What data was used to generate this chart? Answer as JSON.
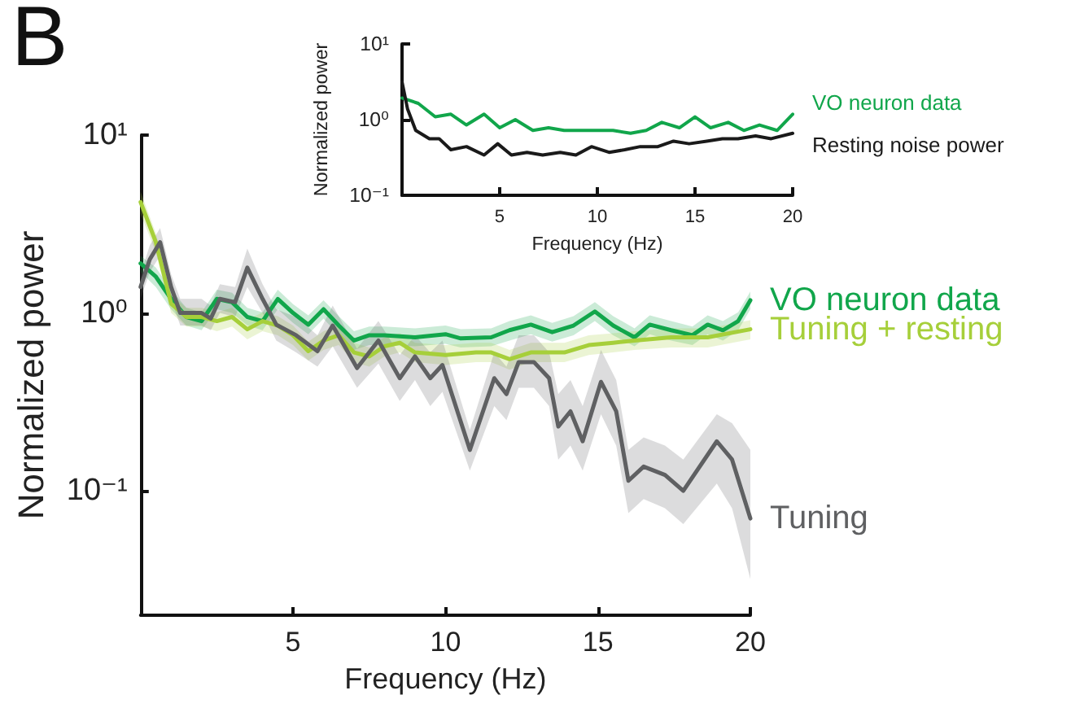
{
  "chart_data": [
    {
      "type": "line",
      "title": "B",
      "xlabel": "Frequency (Hz)",
      "ylabel": "Normalized power",
      "log": "y",
      "grid": false,
      "legend": false,
      "marker": "none",
      "line_style": "solid",
      "xlim": [
        0,
        20
      ],
      "xticks": [
        5,
        10,
        15,
        20
      ],
      "ylim": [
        0.02,
        10
      ],
      "yticks": [
        {
          "value": 0.1,
          "label": "10⁻¹"
        },
        {
          "value": 1,
          "label": "10⁰"
        },
        {
          "value": 10,
          "label": "10¹"
        }
      ],
      "series": [
        {
          "name": "VO neuron data",
          "color": "#11a64b",
          "x": [
            0,
            0.5,
            1,
            1.5,
            2,
            2.5,
            3,
            3.5,
            4,
            4.5,
            5,
            5.5,
            6,
            6.5,
            7,
            7.5,
            8,
            9,
            10,
            10.5,
            11.5,
            12.1,
            12.8,
            13.5,
            14.2,
            14.9,
            15.5,
            16.2,
            16.7,
            17.4,
            18.1,
            18.6,
            19.1,
            19.6,
            20
          ],
          "values": [
            1.9,
            1.6,
            1.2,
            0.95,
            0.9,
            1.2,
            1.15,
            0.95,
            0.9,
            1.2,
            1.0,
            0.86,
            1.05,
            0.85,
            0.7,
            0.75,
            0.75,
            0.73,
            0.76,
            0.72,
            0.73,
            0.8,
            0.86,
            0.78,
            0.85,
            1.02,
            0.85,
            0.73,
            0.86,
            0.8,
            0.75,
            0.86,
            0.8,
            0.9,
            1.18
          ],
          "lower": [
            1.7,
            1.4,
            1.05,
            0.85,
            0.8,
            1.05,
            1.0,
            0.85,
            0.8,
            1.05,
            0.88,
            0.76,
            0.93,
            0.75,
            0.62,
            0.66,
            0.66,
            0.65,
            0.67,
            0.64,
            0.65,
            0.7,
            0.76,
            0.69,
            0.75,
            0.9,
            0.75,
            0.65,
            0.76,
            0.7,
            0.66,
            0.76,
            0.7,
            0.8,
            1.05
          ],
          "upper": [
            2.1,
            1.8,
            1.35,
            1.07,
            1.01,
            1.35,
            1.3,
            1.07,
            1.01,
            1.35,
            1.12,
            0.97,
            1.18,
            0.96,
            0.79,
            0.84,
            0.84,
            0.82,
            0.85,
            0.81,
            0.82,
            0.9,
            0.97,
            0.88,
            0.96,
            1.15,
            0.96,
            0.82,
            0.97,
            0.9,
            0.84,
            0.97,
            0.9,
            1.01,
            1.32
          ]
        },
        {
          "name": "Tuning + resting",
          "color": "#a6cf3a",
          "x": [
            0,
            0.5,
            1,
            1.5,
            2,
            2.5,
            3,
            3.5,
            4,
            4.5,
            5,
            5.5,
            6,
            6.5,
            7,
            7.5,
            8,
            8.5,
            9,
            10,
            11,
            11.5,
            12.1,
            12.8,
            13.9,
            14.7,
            15.5,
            16.2,
            17.4,
            18.6,
            20
          ],
          "values": [
            4.2,
            2.5,
            1.13,
            0.95,
            0.95,
            0.9,
            0.95,
            0.81,
            0.9,
            0.85,
            0.75,
            0.61,
            0.7,
            0.75,
            0.6,
            0.57,
            0.65,
            0.68,
            0.6,
            0.58,
            0.6,
            0.6,
            0.55,
            0.6,
            0.6,
            0.66,
            0.68,
            0.7,
            0.73,
            0.73,
            0.81
          ],
          "lower": [
            3.6,
            2.2,
            1.0,
            0.84,
            0.84,
            0.79,
            0.84,
            0.71,
            0.79,
            0.75,
            0.66,
            0.54,
            0.62,
            0.66,
            0.53,
            0.5,
            0.57,
            0.6,
            0.53,
            0.51,
            0.53,
            0.53,
            0.48,
            0.53,
            0.53,
            0.58,
            0.6,
            0.62,
            0.64,
            0.64,
            0.71
          ],
          "upper": [
            4.8,
            2.8,
            1.27,
            1.07,
            1.07,
            1.01,
            1.07,
            0.91,
            1.01,
            0.96,
            0.85,
            0.69,
            0.79,
            0.85,
            0.68,
            0.64,
            0.73,
            0.77,
            0.68,
            0.66,
            0.68,
            0.68,
            0.62,
            0.68,
            0.68,
            0.75,
            0.77,
            0.79,
            0.82,
            0.82,
            0.91
          ]
        },
        {
          "name": "Tuning",
          "color": "#5f6062",
          "x": [
            0,
            0.3,
            0.64,
            1.0,
            1.3,
            2.0,
            2.3,
            2.6,
            3.1,
            3.5,
            4.0,
            4.45,
            5.1,
            5.8,
            6.3,
            7.1,
            7.8,
            8.5,
            9.0,
            9.5,
            9.9,
            10.8,
            11.6,
            12.0,
            12.4,
            12.9,
            13.4,
            13.7,
            14.1,
            14.5,
            15.1,
            15.6,
            16.0,
            16.5,
            17.2,
            17.8,
            18.9,
            19.4,
            20
          ],
          "values": [
            1.4,
            2.0,
            2.5,
            1.4,
            1.0,
            1.0,
            0.93,
            1.2,
            1.15,
            1.8,
            1.2,
            0.86,
            0.75,
            0.61,
            0.85,
            0.49,
            0.7,
            0.43,
            0.57,
            0.43,
            0.51,
            0.17,
            0.43,
            0.35,
            0.53,
            0.53,
            0.43,
            0.23,
            0.28,
            0.19,
            0.41,
            0.28,
            0.114,
            0.137,
            0.123,
            0.1,
            0.19,
            0.15,
            0.07
          ],
          "lower": [
            1.2,
            1.7,
            2.1,
            1.2,
            0.85,
            0.85,
            0.8,
            1.0,
            0.95,
            1.4,
            1.0,
            0.7,
            0.6,
            0.5,
            0.65,
            0.38,
            0.52,
            0.32,
            0.42,
            0.3,
            0.36,
            0.13,
            0.3,
            0.25,
            0.38,
            0.38,
            0.3,
            0.15,
            0.18,
            0.13,
            0.27,
            0.18,
            0.075,
            0.09,
            0.08,
            0.065,
            0.11,
            0.08,
            0.032
          ],
          "upper": [
            1.65,
            2.4,
            3.0,
            1.65,
            1.2,
            1.2,
            1.1,
            1.45,
            1.4,
            2.3,
            1.45,
            1.05,
            0.95,
            0.75,
            1.1,
            0.63,
            0.9,
            0.58,
            0.75,
            0.6,
            0.7,
            0.22,
            0.6,
            0.5,
            0.75,
            0.75,
            0.6,
            0.35,
            0.42,
            0.3,
            0.62,
            0.42,
            0.17,
            0.2,
            0.18,
            0.15,
            0.27,
            0.24,
            0.17
          ]
        }
      ]
    },
    {
      "type": "line",
      "xlabel": "Frequency (Hz)",
      "ylabel": "Normalized power",
      "log": "y",
      "grid": false,
      "legend": false,
      "marker": "none",
      "line_style": "solid",
      "xlim": [
        0,
        20
      ],
      "xticks": [
        5,
        10,
        15,
        20
      ],
      "ylim": [
        0.1,
        10
      ],
      "yticks": [
        {
          "value": 0.1,
          "label": "10⁻¹"
        },
        {
          "value": 1,
          "label": "10⁰"
        },
        {
          "value": 10,
          "label": "10¹"
        }
      ],
      "series": [
        {
          "name": "VO neuron data",
          "color": "#11a64b",
          "x": [
            0,
            0.83,
            1.7,
            2.5,
            3.3,
            4.2,
            5,
            5.8,
            6.7,
            7.5,
            8.3,
            9.2,
            10,
            10.8,
            11.7,
            12.5,
            13.3,
            14.2,
            15,
            15.8,
            16.7,
            17.5,
            18.3,
            19.2,
            20
          ],
          "values": [
            1.93,
            1.64,
            1.09,
            1.18,
            0.85,
            1.18,
            0.78,
            1.0,
            0.72,
            0.78,
            0.72,
            0.72,
            0.72,
            0.72,
            0.66,
            0.72,
            0.92,
            0.78,
            1.09,
            0.78,
            0.92,
            0.72,
            0.85,
            0.72,
            1.18
          ]
        },
        {
          "name": "Resting noise power",
          "color": "#1a1a1a",
          "x": [
            0,
            0.28,
            0.7,
            1.4,
            1.9,
            2.5,
            3.3,
            4.2,
            4.9,
            5.6,
            6.4,
            7.2,
            8.1,
            8.9,
            9.7,
            10.6,
            11.4,
            12.2,
            13.1,
            13.9,
            14.7,
            15.6,
            16.4,
            17.2,
            18.1,
            18.9,
            20
          ],
          "values": [
            3.16,
            1.39,
            0.72,
            0.56,
            0.56,
            0.4,
            0.44,
            0.34,
            0.48,
            0.34,
            0.37,
            0.34,
            0.37,
            0.34,
            0.44,
            0.37,
            0.4,
            0.44,
            0.44,
            0.52,
            0.48,
            0.52,
            0.56,
            0.56,
            0.61,
            0.56,
            0.66
          ]
        }
      ]
    }
  ]
}
